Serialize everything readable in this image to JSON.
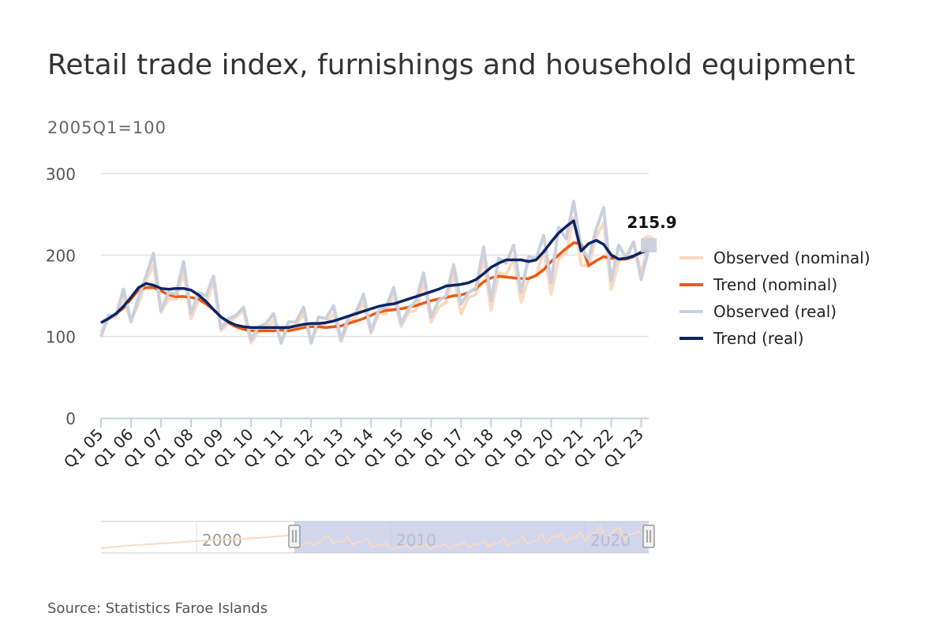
{
  "title": "Retail trade index, furnishings and household equipment",
  "subtitle": "2005Q1=100",
  "source": "Source: Statistics Faroe Islands",
  "colors": {
    "observed_nominal": "#fdd9c0",
    "trend_nominal": "#ec5a0f",
    "observed_real": "#c9d0de",
    "trend_real": "#0b2463",
    "grid": "#e0e3ea",
    "axis_text": "#555555",
    "navigator_mask": "#c2c8e6"
  },
  "chart_data": {
    "type": "line",
    "x_unit": "quarter",
    "start": "2005Q1",
    "ylim": [
      0,
      300
    ],
    "yticks": [
      0,
      100,
      200,
      300
    ],
    "x_tick_labels": [
      "Q1 05",
      "Q1 06",
      "Q1 07",
      "Q1 08",
      "Q1 09",
      "Q1 10",
      "Q1 11",
      "Q1 12",
      "Q1 13",
      "Q1 14",
      "Q1 15",
      "Q1 16",
      "Q1 17",
      "Q1 18",
      "Q1 19",
      "Q1 20",
      "Q1 21",
      "Q1 22",
      "Q1 23"
    ],
    "grid": true,
    "legend_position": "right",
    "annotation": {
      "text": "215.9",
      "series": "Observed (nominal)",
      "x": "2023Q2"
    },
    "series": [
      {
        "name": "Observed (nominal)",
        "values": [
          105,
          122,
          124,
          148,
          120,
          140,
          168,
          188,
          130,
          146,
          146,
          178,
          122,
          145,
          140,
          168,
          107,
          118,
          124,
          132,
          92,
          106,
          110,
          120,
          94,
          112,
          114,
          128,
          94,
          114,
          116,
          128,
          94,
          118,
          124,
          142,
          104,
          128,
          128,
          150,
          112,
          130,
          132,
          166,
          118,
          136,
          142,
          176,
          128,
          148,
          152,
          196,
          132,
          178,
          176,
          196,
          142,
          172,
          174,
          206,
          152,
          196,
          202,
          246,
          188,
          186,
          222,
          240,
          158,
          192,
          200,
          216,
          176,
          215.9
        ]
      },
      {
        "name": "Trend (nominal)",
        "values": [
          117,
          122,
          128,
          135,
          146,
          157,
          160,
          160,
          156,
          151,
          149,
          149,
          148,
          146,
          140,
          133,
          124,
          117,
          112,
          109,
          107,
          107,
          107,
          107,
          108,
          107,
          109,
          111,
          112,
          112,
          111,
          112,
          113,
          116,
          119,
          122,
          126,
          130,
          132,
          133,
          134,
          136,
          138,
          141,
          144,
          146,
          148,
          150,
          151,
          154,
          159,
          167,
          172,
          174,
          173,
          172,
          171,
          171,
          175,
          182,
          192,
          200,
          208,
          215,
          214,
          187,
          193,
          198,
          196,
          195,
          195,
          198,
          204,
          209
        ]
      },
      {
        "name": "Observed (real)",
        "values": [
          100,
          126,
          126,
          158,
          118,
          148,
          174,
          202,
          132,
          154,
          152,
          192,
          128,
          154,
          150,
          174,
          110,
          122,
          126,
          136,
          96,
          112,
          116,
          128,
          92,
          118,
          118,
          136,
          92,
          124,
          122,
          138,
          96,
          124,
          130,
          152,
          106,
          132,
          136,
          160,
          116,
          134,
          144,
          178,
          124,
          144,
          150,
          188,
          140,
          154,
          160,
          210,
          144,
          196,
          190,
          212,
          154,
          198,
          196,
          224,
          166,
          234,
          220,
          266,
          208,
          196,
          232,
          258,
          168,
          212,
          196,
          216,
          170,
          208
        ]
      },
      {
        "name": "Trend (real)",
        "values": [
          117,
          122,
          128,
          137,
          148,
          160,
          165,
          163,
          159,
          158,
          159,
          159,
          157,
          151,
          143,
          133,
          124,
          118,
          114,
          112,
          111,
          111,
          111,
          111,
          111,
          111,
          113,
          115,
          116,
          116,
          117,
          119,
          122,
          125,
          128,
          131,
          134,
          137,
          139,
          140,
          143,
          146,
          149,
          152,
          155,
          158,
          162,
          163,
          164,
          166,
          170,
          177,
          185,
          190,
          194,
          194,
          194,
          192,
          194,
          204,
          216,
          227,
          235,
          242,
          205,
          214,
          218,
          213,
          200,
          195,
          196,
          199,
          203,
          206
        ]
      }
    ]
  },
  "navigator": {
    "year_labels": [
      "2000",
      "2010",
      "2020"
    ]
  }
}
